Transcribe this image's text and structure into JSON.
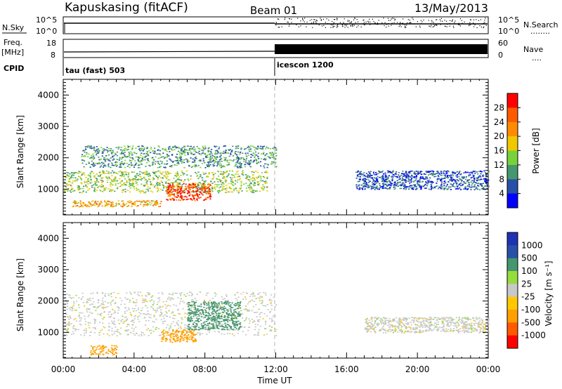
{
  "header": {
    "station": "Kapuskasing (fitACF)",
    "beam": "Beam 01",
    "date": "13/May/2013"
  },
  "aux_panels": {
    "nsky_label": "N.Sky",
    "nsky_ticks": [
      "10^5",
      "10^0"
    ],
    "nsearch_label": "N.Search",
    "nsearch_ticks": [
      "10^5",
      "10^0"
    ],
    "nsearch_marker": "........",
    "freq_label": "Freq.",
    "freq_unit": "[MHz]",
    "freq_ticks": [
      "18",
      "8"
    ],
    "nave_label": "Nave",
    "nave_ticks": [
      "60",
      "0"
    ],
    "nave_marker": "....",
    "cpid_label": "CPID",
    "cpid_modes": [
      {
        "name": "tau (fast) 503",
        "start_hour": 0
      },
      {
        "name": "icescon 1200",
        "start_hour": 12
      }
    ],
    "mode_change_hour": 12
  },
  "colors": {
    "power_scale": [
      "#0000ff",
      "#2850a8",
      "#46966e",
      "#78d23c",
      "#f0c800",
      "#ff8c00",
      "#ff5a00",
      "#ff0000"
    ],
    "velocity_scale": [
      "#ff0000",
      "#ff5a00",
      "#ffa000",
      "#ffc800",
      "#c8c8c8",
      "#96dc3c",
      "#46966e",
      "#2850a8",
      "#1e32b4"
    ],
    "ground_scatter": "#c8c8c8",
    "time_marker": "#b4b4b4"
  },
  "chart_data": [
    {
      "type": "heatmap",
      "name": "power",
      "xlabel": "",
      "ylabel": "Slant Range [km]",
      "xlim": [
        0,
        24
      ],
      "ylim": [
        180,
        4500
      ],
      "yticks": [
        1000,
        2000,
        3000,
        4000
      ],
      "colorbar": {
        "label": "Power [dB]",
        "range": [
          0,
          32
        ],
        "ticks": [
          "4",
          "8",
          "12",
          "16",
          "20",
          "24",
          "28"
        ]
      },
      "echo_regions": [
        {
          "label": "main echo band",
          "t_start": 0,
          "t_end": 11.5,
          "r_min": 900,
          "r_max": 1600,
          "level_db": 14
        },
        {
          "label": "upper arc",
          "t_start": 1,
          "t_end": 12,
          "r_min": 1700,
          "r_max": 2400,
          "level_db": 10
        },
        {
          "label": "near range echoes",
          "t_start": 0.5,
          "t_end": 5.5,
          "r_min": 450,
          "r_max": 650,
          "level_db": 20
        },
        {
          "label": "strong patch",
          "t_start": 5.8,
          "t_end": 8.3,
          "r_min": 650,
          "r_max": 1200,
          "level_db": 28
        },
        {
          "label": "late evening echoes",
          "t_start": 16.5,
          "t_end": 24,
          "r_min": 1000,
          "r_max": 1600,
          "level_db": 6
        }
      ]
    },
    {
      "type": "heatmap",
      "name": "velocity",
      "xlabel": "Time UT",
      "ylabel": "Slant Range [km]",
      "xlim": [
        0,
        24
      ],
      "xticks": [
        "00:00",
        "04:00",
        "08:00",
        "12:00",
        "16:00",
        "20:00",
        "00:00"
      ],
      "ylim": [
        180,
        4500
      ],
      "yticks": [
        1000,
        2000,
        3000,
        4000
      ],
      "colorbar": {
        "label": "Velocity [m s⁻¹]",
        "ticks": [
          "1000",
          "500",
          "100",
          "25",
          "-25",
          "-100",
          "-500",
          "-1000"
        ]
      },
      "echo_regions": [
        {
          "label": "ground scatter band",
          "t_start": 0,
          "t_end": 12,
          "r_min": 900,
          "r_max": 2300,
          "velocity": 0
        },
        {
          "label": "negative patch",
          "t_start": 5.5,
          "t_end": 7.5,
          "r_min": 700,
          "r_max": 1100,
          "velocity": -300
        },
        {
          "label": "positive patch",
          "t_start": 7,
          "t_end": 10,
          "r_min": 1100,
          "r_max": 2000,
          "velocity": 300
        },
        {
          "label": "near range echoes",
          "t_start": 1.5,
          "t_end": 3,
          "r_min": 300,
          "r_max": 600,
          "velocity": -150
        },
        {
          "label": "late evening ground scatter",
          "t_start": 17,
          "t_end": 24,
          "r_min": 1000,
          "r_max": 1500,
          "velocity": 0
        }
      ]
    }
  ]
}
